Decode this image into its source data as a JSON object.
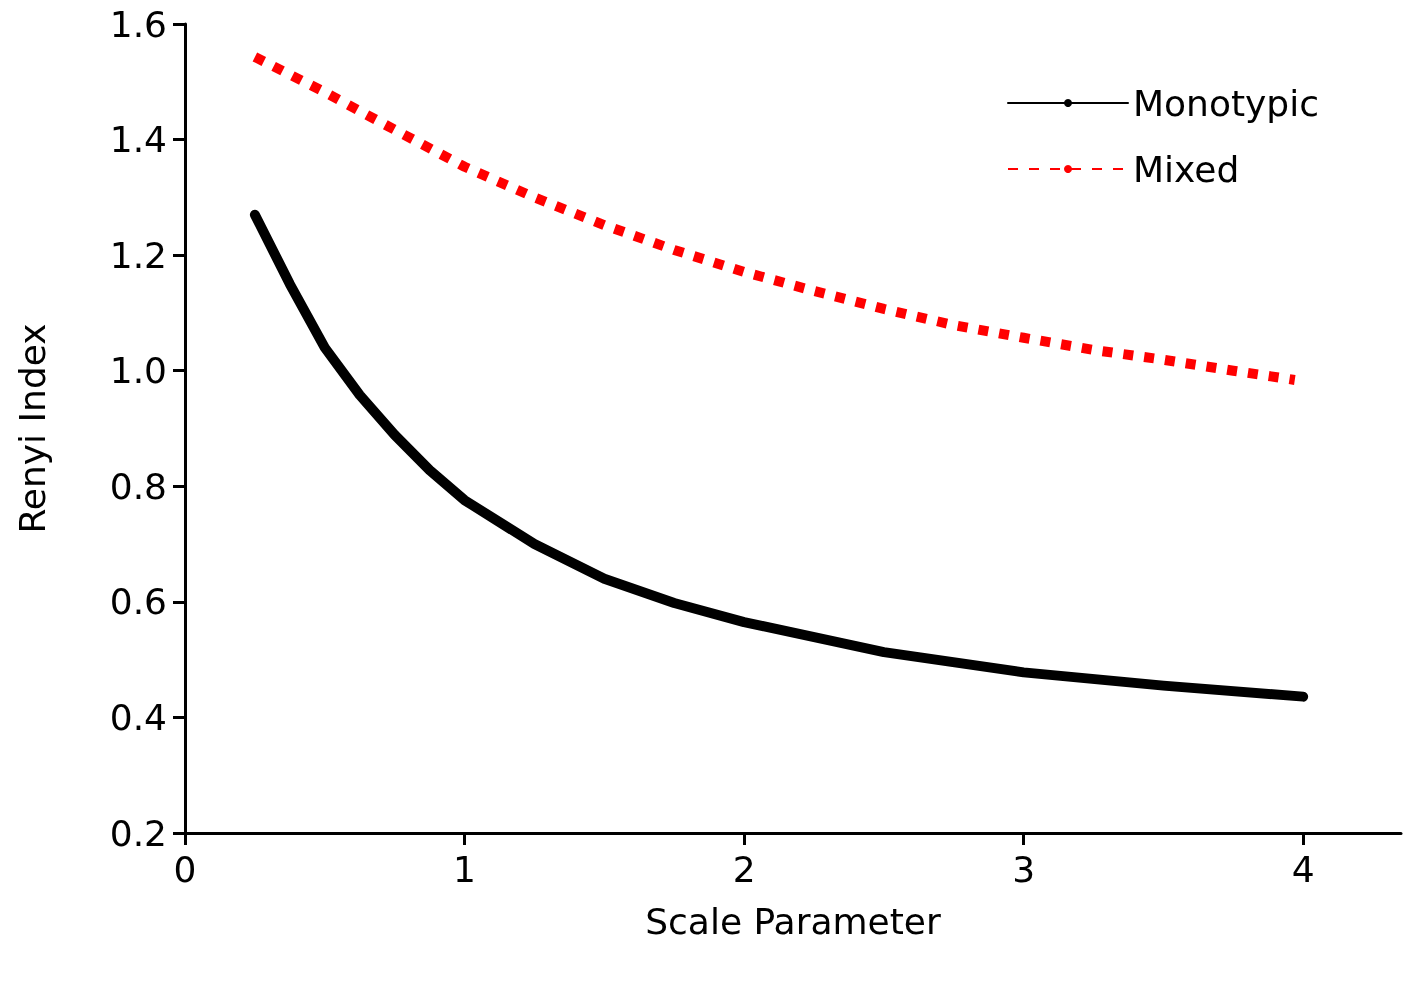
{
  "chart_data": {
    "type": "line",
    "xlabel": "Scale Parameter",
    "ylabel": "Renyi Index",
    "xlim": [
      0,
      4.35
    ],
    "xticks": [
      0,
      1,
      2,
      3,
      4
    ],
    "ylim": [
      0.2,
      1.6
    ],
    "yticks": [
      {
        "value": 0.2,
        "label": "0.2"
      },
      {
        "value": 0.4,
        "label": "0.4"
      },
      {
        "value": 0.6,
        "label": "0.6"
      },
      {
        "value": 0.8,
        "label": "0.8"
      },
      {
        "value": 1,
        "label": "1.0"
      },
      {
        "value": 1.2,
        "label": "1.2"
      },
      {
        "value": 1.4,
        "label": "1.4"
      },
      {
        "value": 1.6,
        "label": "1.6"
      }
    ],
    "grid": false,
    "legend": "top right",
    "marker": "none",
    "series": [
      {
        "name": "Monotypic",
        "color": "#000000",
        "line_style": "solid",
        "x": [
          0.25,
          0.375,
          0.5,
          0.625,
          0.75,
          0.875,
          1,
          1.25,
          1.5,
          1.75,
          2,
          2.5,
          3,
          3.5,
          4
        ],
        "values": [
          1.27,
          1.15,
          1.04,
          0.958,
          0.889,
          0.828,
          0.776,
          0.7,
          0.64,
          0.598,
          0.565,
          0.513,
          0.478,
          0.455,
          0.436
        ]
      },
      {
        "name": "Mixed",
        "color": "#ff0000",
        "line_style": "dotted",
        "x": [
          0.25,
          0.5,
          0.75,
          1,
          1.25,
          1.5,
          1.75,
          2,
          2.25,
          2.5,
          2.75,
          3,
          3.25,
          3.5,
          3.75,
          3.97
        ],
        "values": [
          1.543,
          1.482,
          1.417,
          1.353,
          1.3,
          1.252,
          1.209,
          1.171,
          1.138,
          1.107,
          1.079,
          1.057,
          1.036,
          1.019,
          1,
          0.984
        ]
      }
    ]
  }
}
